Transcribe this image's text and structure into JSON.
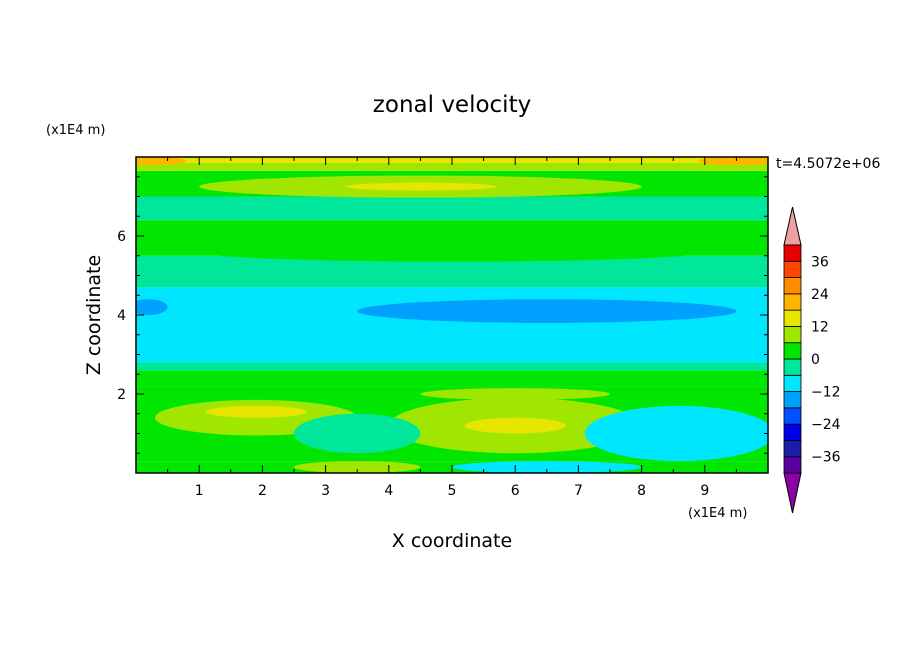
{
  "chart_data": {
    "type": "heatmap",
    "title": "zonal velocity",
    "xlabel": "X coordinate",
    "ylabel": "Z coordinate",
    "x_units": "(x1E4 m)",
    "y_units": "(x1E4 m)",
    "time_label": "t=4.5072e+06",
    "xlim": [
      0,
      10
    ],
    "ylim": [
      0,
      8
    ],
    "xticks": [
      "1",
      "2",
      "3",
      "4",
      "5",
      "6",
      "7",
      "8",
      "9"
    ],
    "yticks": [
      "2",
      "4",
      "6"
    ],
    "colorbar": {
      "levels": [
        -42,
        -36,
        -30,
        -24,
        -18,
        -12,
        -6,
        0,
        6,
        12,
        18,
        24,
        30,
        36,
        42
      ],
      "labels": [
        "-36",
        "-24",
        "-12",
        "0",
        "12",
        "24",
        "36"
      ],
      "colors": [
        "#5a00a0",
        "#1c1ca8",
        "#0000e6",
        "#0050ff",
        "#00a0ff",
        "#00e6ff",
        "#00e69a",
        "#00e600",
        "#a0e600",
        "#e6e600",
        "#ffb400",
        "#ff8c00",
        "#ff4600",
        "#e60000"
      ],
      "extend_low_color": "#8c00a8",
      "extend_high_color": "#f0a0a0"
    },
    "bands": [
      {
        "z": [
          0.0,
          0.3
        ],
        "value": 3
      },
      {
        "z": [
          0.3,
          1.9
        ],
        "value": 2
      },
      {
        "z": [
          1.9,
          2.2
        ],
        "value": 1
      },
      {
        "z": [
          2.2,
          2.6
        ],
        "value": 5
      },
      {
        "z": [
          2.6,
          2.8
        ],
        "value": -4
      },
      {
        "z": [
          2.8,
          4.7
        ],
        "value": -10
      },
      {
        "z": [
          4.7,
          5.5
        ],
        "value": -3
      },
      {
        "z": [
          5.5,
          6.4
        ],
        "value": 3
      },
      {
        "z": [
          6.4,
          7.0
        ],
        "value": -2
      },
      {
        "z": [
          7.0,
          7.65
        ],
        "value": 4
      },
      {
        "z": [
          7.65,
          7.85
        ],
        "value": 8
      },
      {
        "z": [
          7.85,
          8.0
        ],
        "value": 14
      }
    ],
    "features": [
      {
        "x": 1.9,
        "z": 1.4,
        "rx": 1.6,
        "rz": 0.45,
        "value": 10
      },
      {
        "x": 1.9,
        "z": 1.55,
        "rx": 0.8,
        "rz": 0.15,
        "value": 16
      },
      {
        "x": 6.0,
        "z": 1.2,
        "rx": 2.0,
        "rz": 0.7,
        "value": 8
      },
      {
        "x": 6.0,
        "z": 1.2,
        "rx": 0.8,
        "rz": 0.2,
        "value": 13
      },
      {
        "x": 8.6,
        "z": 1.0,
        "rx": 1.5,
        "rz": 0.7,
        "value": -9
      },
      {
        "x": 3.5,
        "z": 1.0,
        "rx": 1.0,
        "rz": 0.5,
        "value": -5
      },
      {
        "x": 6.5,
        "z": 4.1,
        "rx": 3.0,
        "rz": 0.3,
        "value": -15
      },
      {
        "x": 0.2,
        "z": 4.2,
        "rx": 0.3,
        "rz": 0.2,
        "value": -15
      },
      {
        "x": 4.5,
        "z": 7.25,
        "rx": 3.5,
        "rz": 0.28,
        "value": 10
      },
      {
        "x": 4.5,
        "z": 7.25,
        "rx": 1.2,
        "rz": 0.1,
        "value": 14
      },
      {
        "x": 5.0,
        "z": 5.6,
        "rx": 4.0,
        "rz": 0.25,
        "value": 2
      },
      {
        "x": 6.0,
        "z": 2.0,
        "rx": 1.5,
        "rz": 0.15,
        "value": 8
      },
      {
        "x": 9.5,
        "z": 7.9,
        "rx": 0.6,
        "rz": 0.1,
        "value": 18
      },
      {
        "x": 0.3,
        "z": 7.9,
        "rx": 0.5,
        "rz": 0.1,
        "value": 18
      },
      {
        "x": 3.5,
        "z": 0.15,
        "rx": 1.0,
        "rz": 0.15,
        "value": 10
      },
      {
        "x": 6.5,
        "z": 0.15,
        "rx": 1.5,
        "rz": 0.15,
        "value": -7
      }
    ]
  }
}
